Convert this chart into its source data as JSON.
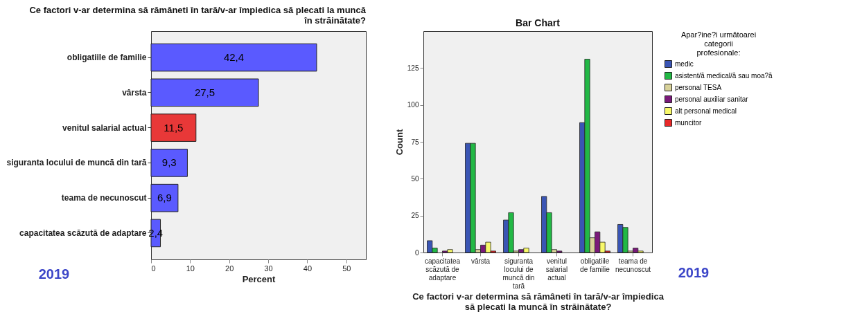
{
  "chart_data": [
    {
      "type": "bar",
      "orientation": "horizontal",
      "title": "Ce factori v-ar determina să rămâneti în tară/v-ar împiedica să plecati la muncă în străinătate?",
      "xlabel": "Percent",
      "categories": [
        "obligatiile de familie",
        "vârsta",
        "venitul salarial actual",
        "siguranta locului de muncă din tară",
        "teama de necunoscut",
        "capacitatea scăzută de adaptare"
      ],
      "values": [
        42.4,
        27.5,
        11.5,
        9.3,
        6.9,
        2.4
      ],
      "colors": [
        "#5a5aff",
        "#5a5aff",
        "#e83838",
        "#5a5aff",
        "#5a5aff",
        "#5a5aff"
      ],
      "xlim": [
        0,
        55
      ],
      "xticks": [
        0,
        10,
        20,
        30,
        40,
        50
      ],
      "value_labels": [
        "42,4",
        "27,5",
        "11,5",
        "9,3",
        "6,9",
        "2,4"
      ],
      "grid": false,
      "annotations": [
        "2019"
      ]
    },
    {
      "type": "bar",
      "title": "Bar Chart",
      "xlabel": "Ce factori v-ar determina să rămâneti în tară/v-ar împiedica să plecati la muncă în străinătate?",
      "ylabel": "Count",
      "legend_title": "Apar?ine?i următoarei categorii profesionale:",
      "categories": [
        "capacitatea scăzută de adaptare",
        "vârsta",
        "siguranta locului de muncă din tară",
        "venitul salarial actual",
        "obligatiile de familie",
        "teama de necunoscut"
      ],
      "series": [
        {
          "name": "medic",
          "color": "#3a55b4",
          "values": [
            8,
            74,
            22,
            38,
            88,
            19
          ]
        },
        {
          "name": "asistent/ă medical/ă sau moa?ă",
          "color": "#22b845",
          "values": [
            3,
            74,
            27,
            27,
            131,
            17
          ]
        },
        {
          "name": "personal TESA",
          "color": "#d8d29a",
          "values": [
            null,
            2,
            1,
            2,
            10,
            1
          ]
        },
        {
          "name": "personal auxiliar sanitar",
          "color": "#7a1a7a",
          "values": [
            1,
            5,
            2,
            1,
            14,
            3
          ]
        },
        {
          "name": "alt personal medical",
          "color": "#f8f86a",
          "values": [
            2,
            7,
            3,
            null,
            7,
            1
          ]
        },
        {
          "name": "muncitor",
          "color": "#e82828",
          "values": [
            null,
            1,
            null,
            null,
            1,
            null
          ]
        }
      ],
      "ylim": [
        0,
        150
      ],
      "yticks": [
        0,
        25,
        50,
        75,
        100,
        125
      ],
      "legend": "right",
      "grid": false,
      "annotations": [
        "2019"
      ]
    }
  ]
}
